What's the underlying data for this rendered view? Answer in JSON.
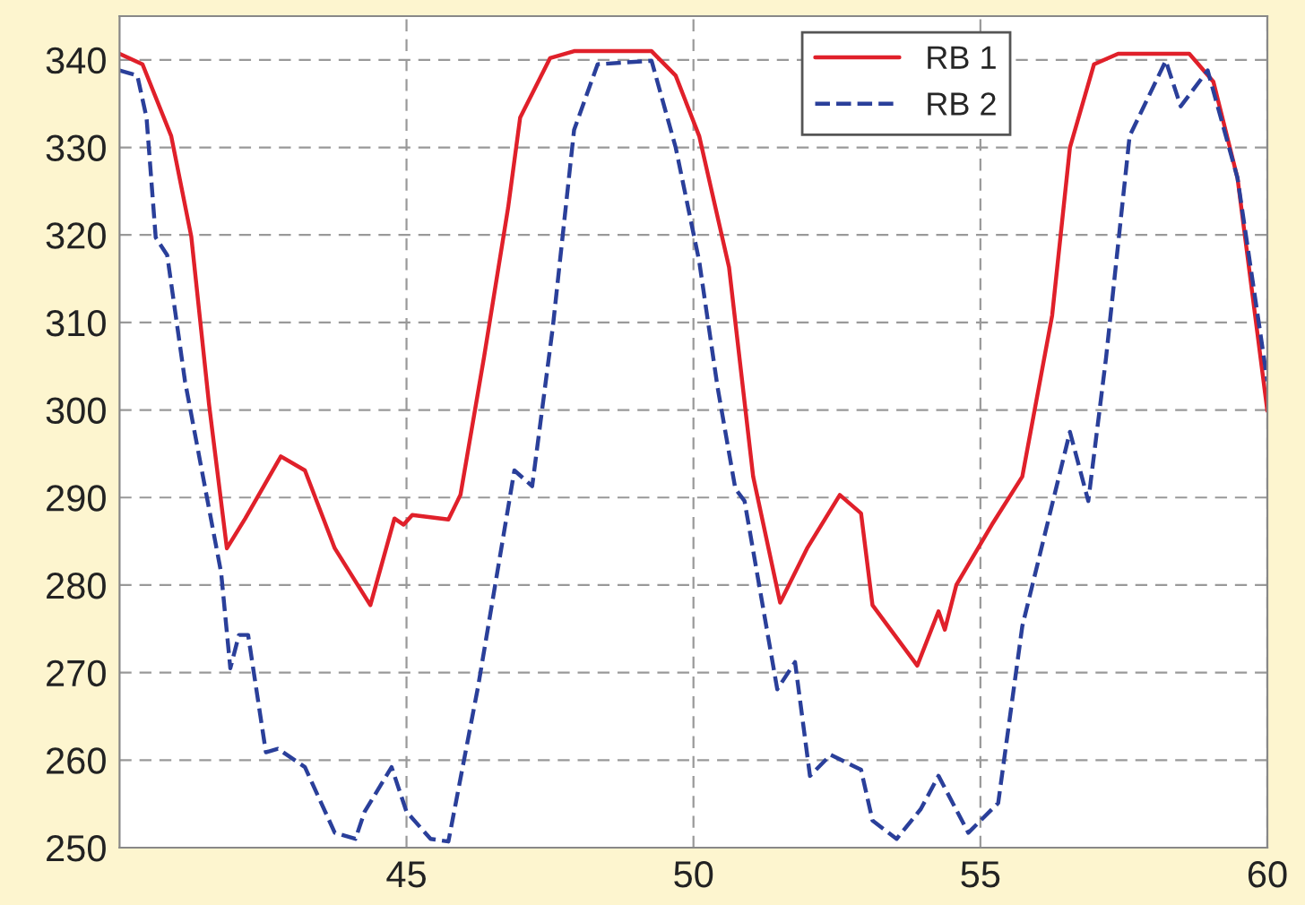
{
  "chart_data": {
    "type": "line",
    "xlim": [
      40,
      60
    ],
    "ylim": [
      250,
      345
    ],
    "xticks": [
      45,
      50,
      55,
      60
    ],
    "yticks": [
      250,
      260,
      270,
      280,
      290,
      300,
      310,
      320,
      330,
      340
    ],
    "grid": true,
    "legend": "top right",
    "series": [
      {
        "name": "RB 1",
        "color": "#e0202a",
        "line_style": "solid",
        "x": [
          40,
          40.4,
          40.9,
          41.25,
          41.56,
          41.87,
          42.19,
          42.81,
          43.23,
          43.75,
          44.37,
          44.79,
          44.95,
          45.1,
          45.73,
          45.94,
          46.35,
          46.77,
          46.98,
          47.5,
          47.92,
          49.27,
          49.69,
          50.1,
          50.62,
          51.04,
          51.51,
          51.98,
          52.55,
          52.92,
          53.12,
          53.9,
          54.27,
          54.38,
          54.58,
          55.2,
          55.73,
          56.25,
          56.56,
          56.98,
          57.4,
          58.64,
          59.06,
          59.48,
          60
        ],
        "values": [
          340.7,
          339.5,
          331.3,
          319.8,
          300.6,
          284.2,
          287.6,
          294.7,
          293.1,
          284.2,
          277.7,
          287.6,
          286.9,
          288,
          287.5,
          290.3,
          306,
          323.1,
          333.4,
          340.2,
          341,
          341,
          338.2,
          331.3,
          316.3,
          292.4,
          278,
          284.2,
          290.3,
          288.2,
          277.7,
          270.8,
          277,
          274.9,
          280,
          286.9,
          292.4,
          310.8,
          330,
          339.5,
          340.7,
          340.7,
          337.5,
          326.5,
          299.9
        ]
      },
      {
        "name": "RB 2",
        "color": "#2a3f9a",
        "line_style": "dashed",
        "x": [
          40,
          40.31,
          40.47,
          40.63,
          40.83,
          41.14,
          41.77,
          41.93,
          42.08,
          42.24,
          42.55,
          42.76,
          43.23,
          43.75,
          44.11,
          44.27,
          44.74,
          45,
          45.42,
          45.73,
          46.25,
          46.88,
          47.19,
          47.55,
          47.92,
          48.33,
          49.27,
          49.69,
          50.1,
          50.42,
          50.73,
          50.89,
          51.46,
          51.77,
          52.03,
          52.39,
          52.92,
          53.12,
          53.54,
          53.96,
          54.27,
          54.79,
          55.31,
          55.73,
          56.56,
          56.88,
          57.19,
          57.6,
          58.23,
          58.49,
          58.96,
          59.48,
          60
        ],
        "values": [
          338.8,
          338.2,
          333.4,
          319.7,
          317.7,
          303.3,
          281.4,
          270.5,
          274.3,
          274.3,
          260.9,
          261.3,
          259.2,
          251.7,
          251,
          254.1,
          259.2,
          254.1,
          251,
          250.7,
          268.5,
          293.1,
          291.3,
          309.5,
          332,
          339.5,
          339.9,
          330,
          317,
          302.6,
          291,
          289.6,
          268.1,
          271.2,
          258.2,
          260.6,
          258.9,
          253.1,
          251,
          254.4,
          258.2,
          251.7,
          255.1,
          275.3,
          297.5,
          289.6,
          306,
          331.3,
          339.9,
          334.7,
          338.8,
          326.5,
          303.3
        ]
      }
    ]
  }
}
